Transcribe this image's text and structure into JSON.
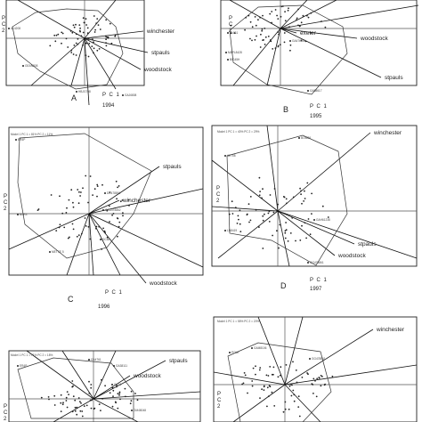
{
  "panels": [
    {
      "id": "A",
      "letter": "A",
      "year": "1994",
      "header": "",
      "xlabel": "P C 1",
      "ylabel": "P C 2",
      "site_labels": [
        "winchester",
        "stpauls",
        "woodstock"
      ],
      "point_labels": [
        "AL4208",
        "GEAN808",
        "HBJG708",
        "GAJ6808"
      ]
    },
    {
      "id": "B",
      "letter": "B",
      "year": "1995",
      "header": "",
      "xlabel": "P C 1",
      "ylabel": "P C 2",
      "site_labels": [
        "exeter",
        "woodstock",
        "stpauls"
      ],
      "point_labels": [
        "IN4G1",
        "GA476851",
        "MAPL8428",
        "BIG45H",
        "GA58617"
      ]
    },
    {
      "id": "C",
      "letter": "C",
      "year": "1996",
      "header": "Model 1  PC 1 = 81%  PC 2 = 11%",
      "xlabel": "P C 1",
      "ylabel": "P C 2",
      "site_labels": [
        "stpauls",
        "winchester",
        "woodstock"
      ],
      "point_labels": [
        "ER4P",
        "DC478861",
        "GCA478862",
        "BUR4",
        "GC66",
        "METSE 5"
      ]
    },
    {
      "id": "D",
      "letter": "D",
      "year": "1997",
      "header": "Model 1  PC 1 = 40%  PC 2 = 29%",
      "xlabel": "P C 1",
      "ylabel": "P C 2",
      "site_labels": [
        "winchester",
        "stpauls",
        "woodstock"
      ],
      "point_labels": [
        "BOMB6",
        "AE708",
        "LN8419",
        "GAH61238",
        "GG478861"
      ]
    },
    {
      "id": "E",
      "letter": "",
      "year": "",
      "header": "Model 1  PC 1 = 71%  PC 2 = 18%",
      "xlabel": "",
      "ylabel": "P C 2",
      "site_labels": [
        "stpauls",
        "woodstock"
      ],
      "point_labels": [
        "ER4P",
        "GA4761",
        "GA38111",
        "GC10",
        "GM48048"
      ]
    },
    {
      "id": "F",
      "letter": "",
      "year": "",
      "header": "Model 1  PC 1 = 55%  PC 2 = 20%",
      "xlabel": "",
      "ylabel": "P C 2",
      "site_labels": [
        "winchester"
      ],
      "point_labels": [
        "GAM8106",
        "GG478861",
        "POLE"
      ]
    }
  ],
  "chart_data": [
    {
      "type": "scatter",
      "panel": "A",
      "title": "1994",
      "xlabel": "P C 1",
      "ylabel": "P C 2",
      "vectors": [
        {
          "name": "winchester",
          "x": 1.0,
          "y": 0.05
        },
        {
          "name": "stpauls",
          "x": 0.8,
          "y": -0.35
        },
        {
          "name": "woodstock",
          "x": 0.85,
          "y": -0.65
        }
      ],
      "grid": false
    },
    {
      "type": "scatter",
      "panel": "B",
      "title": "1995",
      "xlabel": "P C 1",
      "ylabel": "P C 2",
      "vectors": [
        {
          "name": "exeter",
          "x": 0.3,
          "y": -0.1
        },
        {
          "name": "woodstock",
          "x": 0.9,
          "y": -0.05
        },
        {
          "name": "stpauls",
          "x": 0.95,
          "y": -0.45
        }
      ],
      "grid": false
    },
    {
      "type": "scatter",
      "panel": "C",
      "title": "1996",
      "xlabel": "P C 1",
      "ylabel": "P C 2",
      "vectors": [
        {
          "name": "stpauls",
          "x": 0.9,
          "y": 0.55
        },
        {
          "name": "winchester",
          "x": 0.9,
          "y": 0.2
        },
        {
          "name": "woodstock",
          "x": 0.95,
          "y": -0.85
        }
      ],
      "grid": false
    },
    {
      "type": "scatter",
      "panel": "D",
      "title": "1997",
      "xlabel": "P C 1",
      "ylabel": "P C 2",
      "vectors": [
        {
          "name": "winchester",
          "x": 0.9,
          "y": 0.9
        },
        {
          "name": "stpauls",
          "x": 0.65,
          "y": -0.35
        },
        {
          "name": "woodstock",
          "x": 0.55,
          "y": -0.5
        }
      ],
      "grid": false
    },
    {
      "type": "scatter",
      "panel": "E",
      "title": "",
      "xlabel": "",
      "ylabel": "P C 2",
      "vectors": [
        {
          "name": "stpauls",
          "x": 0.95,
          "y": 0.75
        },
        {
          "name": "woodstock",
          "x": 0.45,
          "y": 0.45
        }
      ],
      "grid": false
    },
    {
      "type": "scatter",
      "panel": "F",
      "title": "",
      "xlabel": "",
      "ylabel": "P C 2",
      "vectors": [
        {
          "name": "winchester",
          "x": 0.95,
          "y": 0.8
        }
      ],
      "grid": false
    }
  ]
}
